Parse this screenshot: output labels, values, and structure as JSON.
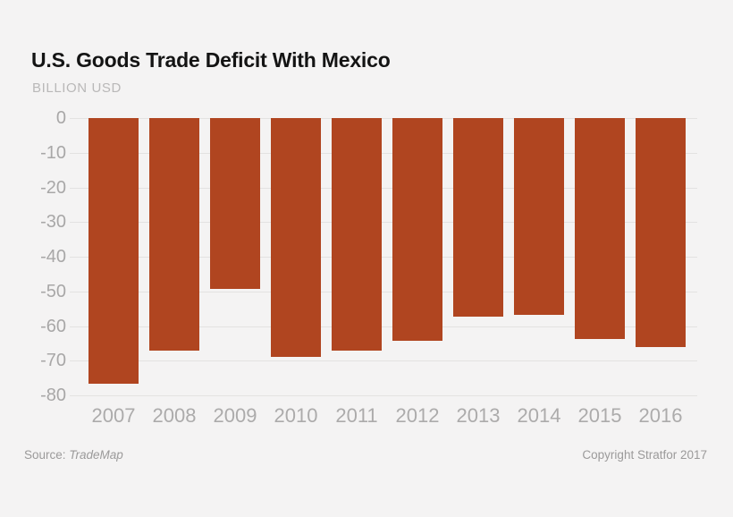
{
  "header": {
    "title": "U.S. Goods Trade Deficit With Mexico",
    "subtitle": "BILLION USD"
  },
  "footer": {
    "source_prefix": "Source: ",
    "source_name": "TradeMap",
    "copyright": "Copyright Stratfor 2017"
  },
  "colors": {
    "background": "#f4f3f3",
    "bar": "#b04520",
    "gridline": "#e3e2e1",
    "axis_text": "#a8a7a7",
    "title_text": "#141414",
    "subtitle_text": "#b9b8b8",
    "footer_text": "#9b9a9a"
  },
  "chart_data": {
    "type": "bar",
    "title": "U.S. Goods Trade Deficit With Mexico",
    "xlabel": "",
    "ylabel": "BILLION USD",
    "categories": [
      "2007",
      "2008",
      "2009",
      "2010",
      "2011",
      "2012",
      "2013",
      "2014",
      "2015",
      "2016"
    ],
    "values": [
      -76.7,
      -67.1,
      -49.3,
      -68.9,
      -67.0,
      -64.2,
      -57.3,
      -56.9,
      -63.8,
      -66.1
    ],
    "ylim": [
      -80,
      0
    ],
    "yticks": [
      0,
      -10,
      -20,
      -30,
      -40,
      -50,
      -60,
      -70,
      -80
    ],
    "grid": true,
    "legend": "none",
    "bar_color": "#b04520"
  }
}
